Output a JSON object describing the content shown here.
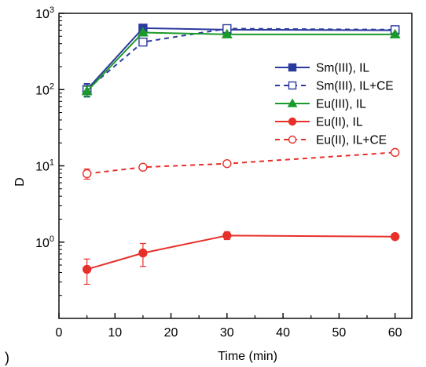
{
  "panel_marker": ")",
  "chart_data": {
    "type": "line",
    "title": "",
    "xlabel": "Time (min)",
    "ylabel": "D",
    "xlim": [
      0,
      63
    ],
    "ylim": [
      0.1,
      1000
    ],
    "y_scale": "log",
    "x_ticks": [
      0,
      10,
      20,
      30,
      40,
      50,
      60
    ],
    "y_ticks": [
      {
        "value": 1000,
        "base": "10",
        "exp": "3"
      },
      {
        "value": 100,
        "base": "10",
        "exp": "2"
      },
      {
        "value": 10,
        "base": "10",
        "exp": "1"
      },
      {
        "value": 1,
        "base": "10",
        "exp": "0"
      }
    ],
    "grid": false,
    "legend_position": "right",
    "series": [
      {
        "name": "Sm(III), IL",
        "color": "#2b3a9e",
        "line_style": "solid",
        "marker": "square-filled",
        "x": [
          5,
          15,
          30,
          60
        ],
        "y": [
          100,
          640,
          610,
          600
        ],
        "err": [
          18,
          30,
          25,
          25
        ]
      },
      {
        "name": "Sm(III), IL+CE",
        "color": "#2b3a9e",
        "line_style": "dashed",
        "marker": "square-open",
        "x": [
          5,
          15,
          30,
          60
        ],
        "y": [
          100,
          420,
          630,
          610
        ],
        "err": [
          20,
          45,
          40,
          35
        ]
      },
      {
        "name": "Eu(III), IL",
        "color": "#1a9a2a",
        "line_style": "solid",
        "marker": "triangle-filled",
        "x": [
          5,
          15,
          30,
          60
        ],
        "y": [
          95,
          560,
          530,
          530
        ],
        "err": [
          15,
          25,
          20,
          20
        ]
      },
      {
        "name": "Eu(II), IL",
        "color": "#e8302a",
        "line_style": "solid",
        "marker": "circle-filled",
        "x": [
          5,
          15,
          30,
          60
        ],
        "y": [
          0.44,
          0.72,
          1.22,
          1.18
        ],
        "err": [
          0.16,
          0.24,
          0.14,
          0.08
        ]
      },
      {
        "name": "Eu(II), IL+CE",
        "color": "#e8302a",
        "line_style": "dashed",
        "marker": "circle-open",
        "x": [
          5,
          15,
          30,
          60
        ],
        "y": [
          7.9,
          9.6,
          10.7,
          15.0
        ],
        "err": [
          1.2,
          0.6,
          0.6,
          0.7
        ]
      }
    ]
  }
}
